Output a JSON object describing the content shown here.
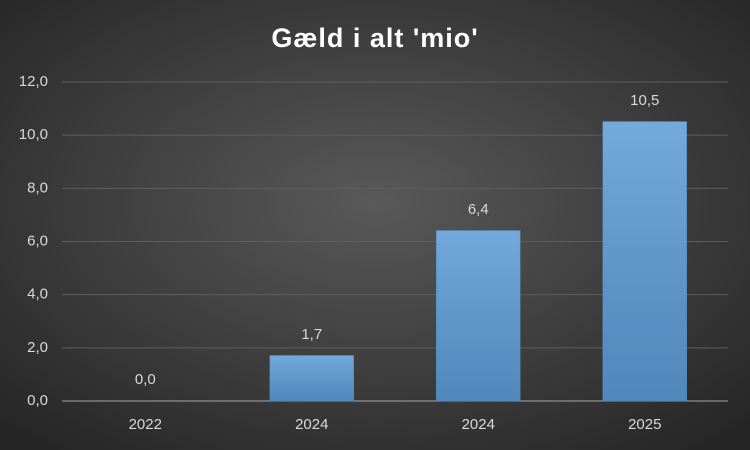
{
  "chart_data": {
    "type": "bar",
    "title": "Gæld i alt 'mio'",
    "categories": [
      "2022",
      "2024",
      "2024",
      "2025"
    ],
    "values": [
      0,
      1.7,
      6.4,
      10.5
    ],
    "value_labels": [
      "0,0",
      "1,7",
      "6,4",
      "10,5"
    ],
    "color": "#5b9bd5",
    "ylim": [
      0,
      12
    ],
    "yticks": [
      {
        "value": 0,
        "label": "0,0"
      },
      {
        "value": 2,
        "label": "2,0"
      },
      {
        "value": 4,
        "label": "4,0"
      },
      {
        "value": 6,
        "label": "6,0"
      },
      {
        "value": 8,
        "label": "8,0"
      },
      {
        "value": 10,
        "label": "10,0"
      },
      {
        "value": 12,
        "label": "12,0"
      }
    ],
    "grid": true
  }
}
